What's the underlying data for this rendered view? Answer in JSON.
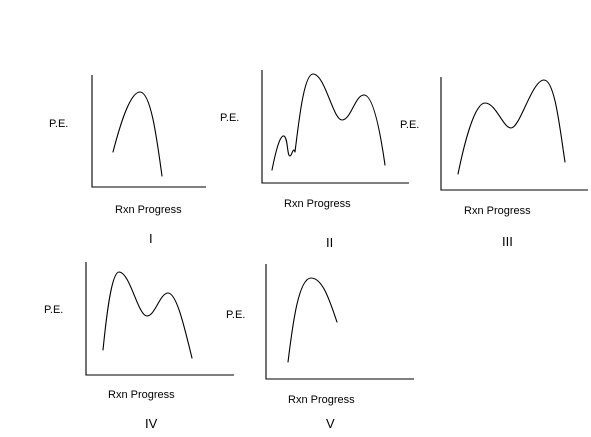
{
  "labels": {
    "y_axis": "P.E.",
    "x_axis": "Rxn Progress"
  },
  "panels": [
    {
      "numeral": "I"
    },
    {
      "numeral": "II"
    },
    {
      "numeral": "III"
    },
    {
      "numeral": "IV"
    },
    {
      "numeral": "V"
    }
  ],
  "colors": {
    "line": "#000000",
    "background": "#ffffff"
  }
}
